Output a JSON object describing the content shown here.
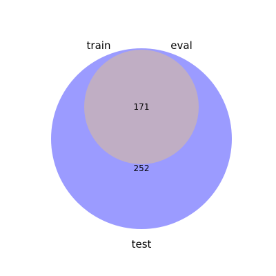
{
  "venn": {
    "sets": {
      "train": {
        "label": "train"
      },
      "eval": {
        "label": "eval"
      },
      "test": {
        "label": "test"
      }
    },
    "regions": [
      {
        "members": [
          "train",
          "eval",
          "test"
        ],
        "label": "171"
      },
      {
        "members": [
          "test"
        ],
        "label": "252"
      }
    ],
    "colors": {
      "test_only": "#9b9bff",
      "overlap": "#c0aec4"
    }
  }
}
